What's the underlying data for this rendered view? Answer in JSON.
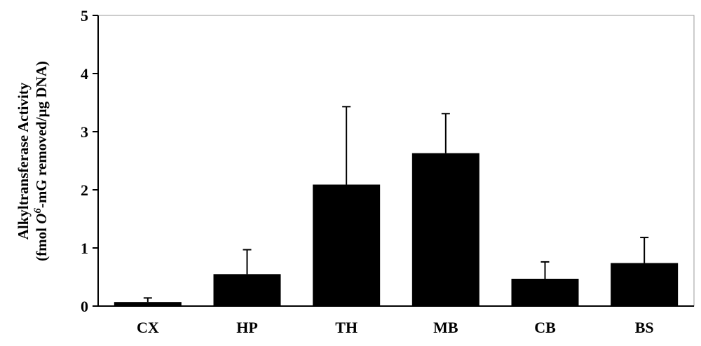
{
  "chart_data": {
    "type": "bar",
    "categories": [
      "CX",
      "HP",
      "TH",
      "MB",
      "CB",
      "BS"
    ],
    "values": [
      0.07,
      0.55,
      2.09,
      2.63,
      0.47,
      0.74
    ],
    "errors": [
      0.07,
      0.42,
      1.34,
      0.68,
      0.29,
      0.44
    ],
    "ylabel_line1": "Alkyltransferase Activity",
    "ylabel_line2_pre": "(fmol ",
    "ylabel_line2_italic": "O",
    "ylabel_line2_sup": "6",
    "ylabel_line2_post": "-mG removed/µg DNA)",
    "ylim": [
      0,
      5
    ],
    "yticks": [
      "0",
      "1",
      "2",
      "3",
      "4",
      "5"
    ],
    "bar_color": "#000000"
  }
}
